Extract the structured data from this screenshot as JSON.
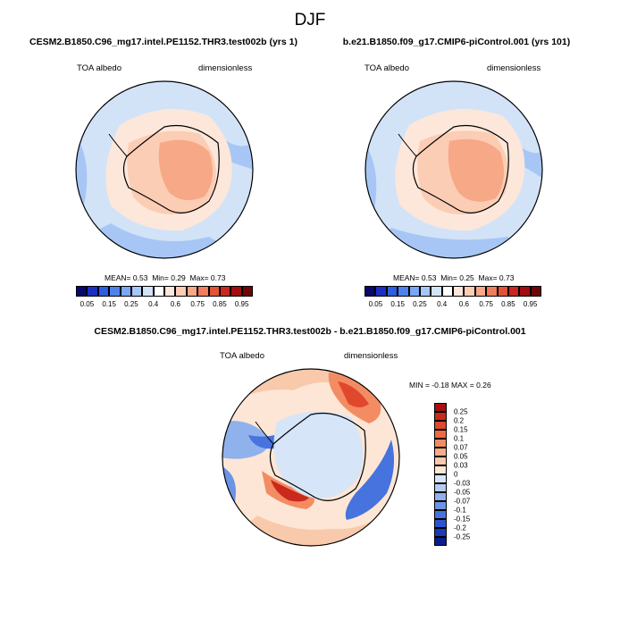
{
  "title": "DJF",
  "panels": [
    {
      "case": "CESM2.B1850.C96_mg17.intel.PE1152.THR3.test002b (yrs 1)",
      "variable": "TOA albedo",
      "units": "dimensionless",
      "stats": {
        "mean_label": "MEAN=",
        "mean": "0.53",
        "min_label": "Min=",
        "min": "0.29",
        "max_label": "Max=",
        "max": "0.73"
      }
    },
    {
      "case": "b.e21.B1850.f09_g17.CMIP6-piControl.001 (yrs 101)",
      "variable": "TOA albedo",
      "units": "dimensionless",
      "stats": {
        "mean_label": "MEAN=",
        "mean": "0.53",
        "min_label": "Min=",
        "min": "0.25",
        "max_label": "Max=",
        "max": "0.73"
      }
    }
  ],
  "diff_panel": {
    "case": "CESM2.B1850.C96_mg17.intel.PE1152.THR3.test002b - b.e21.B1850.f09_g17.CMIP6-piControl.001",
    "variable": "TOA albedo",
    "units": "dimensionless",
    "stats": {
      "min_label": "MIN =",
      "min": "-0.18",
      "max_label": "MAX =",
      "max": "0.26"
    }
  },
  "colorbar": {
    "colors": [
      "#08086e",
      "#1c2fc4",
      "#2d5ee0",
      "#4d82ee",
      "#7aa6f3",
      "#a7c6f5",
      "#d2e3f8",
      "#ffffff",
      "#fde7da",
      "#fbcdb4",
      "#f7a886",
      "#f07d5c",
      "#e25236",
      "#c8281f",
      "#a10e0e",
      "#6e0505"
    ],
    "labels": [
      "0.05",
      "0.15",
      "0.25",
      "0.4",
      "0.6",
      "0.75",
      "0.85",
      "0.95"
    ]
  },
  "diff_colorbar": {
    "colors": [
      "#a80f0f",
      "#c92a1c",
      "#e0482d",
      "#ee6a45",
      "#f48c63",
      "#f7ac88",
      "#f9c9ab",
      "#fde6d5",
      "#d6e5f8",
      "#b3ccf2",
      "#8fb1ec",
      "#6b93e6",
      "#4673de",
      "#2a55d2",
      "#1a3bb8",
      "#0a1c8e"
    ],
    "labels": [
      "0.25",
      "0.2",
      "0.15",
      "0.1",
      "0.07",
      "0.05",
      "0.03",
      "0",
      "-0.03",
      "-0.05",
      "-0.07",
      "-0.1",
      "-0.15",
      "-0.2",
      "-0.25"
    ]
  }
}
